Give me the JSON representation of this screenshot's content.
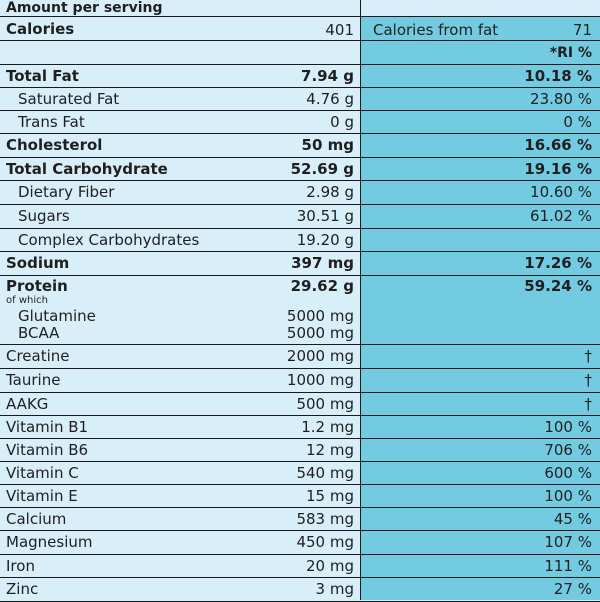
{
  "header": "Amount per serving",
  "calories": {
    "label": "Calories",
    "value": "401",
    "fat_label": "Calories from fat",
    "fat_value": "71"
  },
  "ri_header": "*RI %",
  "rows": [
    {
      "label": "Total Fat",
      "amount": "7.94 g",
      "ri": "10.18 %",
      "bold": true
    },
    {
      "label": "Saturated Fat",
      "amount": "4.76 g",
      "ri": "23.80 %",
      "bold": false
    },
    {
      "label": "Trans Fat",
      "amount": "0 g",
      "ri": "0 %",
      "bold": false
    },
    {
      "label": "Cholesterol",
      "amount": "50 mg",
      "ri": "16.66 %",
      "bold": true
    },
    {
      "label": "Total Carbohydrate",
      "amount": "52.69 g",
      "ri": "19.16 %",
      "bold": true
    },
    {
      "label": "Dietary Fiber",
      "amount": "2.98 g",
      "ri": "10.60 %",
      "bold": false
    },
    {
      "label": "Sugars",
      "amount": "30.51 g",
      "ri": "61.02 %",
      "bold": false
    },
    {
      "label": "Complex Carbohydrates",
      "amount": "19.20 g",
      "ri": "",
      "bold": false
    },
    {
      "label": "Sodium",
      "amount": "397 mg",
      "ri": "17.26 %",
      "bold": true
    }
  ],
  "protein": {
    "label": "Protein",
    "amount": "29.62 g",
    "ri": "59.24 %",
    "of_which": "of which",
    "sub": [
      {
        "label": "Glutamine",
        "amount": "5000 mg"
      },
      {
        "label": "BCAA",
        "amount": "5000 mg"
      }
    ]
  },
  "rows2": [
    {
      "label": "Creatine",
      "amount": "2000 mg",
      "ri": "†"
    },
    {
      "label": "Taurine",
      "amount": "1000 mg",
      "ri": "†"
    },
    {
      "label": "AAKG",
      "amount": "500 mg",
      "ri": "†"
    },
    {
      "label": "Vitamin B1",
      "amount": "1.2 mg",
      "ri": "100 %"
    },
    {
      "label": "Vitamin B6",
      "amount": "12 mg",
      "ri": "706 %"
    },
    {
      "label": "Vitamin C",
      "amount": "540 mg",
      "ri": "600 %"
    },
    {
      "label": "Vitamin E",
      "amount": "15 mg",
      "ri": "100 %"
    },
    {
      "label": "Calcium",
      "amount": "583 mg",
      "ri": "45 %"
    },
    {
      "label": "Magnesium",
      "amount": "450 mg",
      "ri": "107 %"
    },
    {
      "label": "Iron",
      "amount": "20 mg",
      "ri": "111 %"
    },
    {
      "label": "Zinc",
      "amount": "3 mg",
      "ri": "27 %"
    }
  ]
}
